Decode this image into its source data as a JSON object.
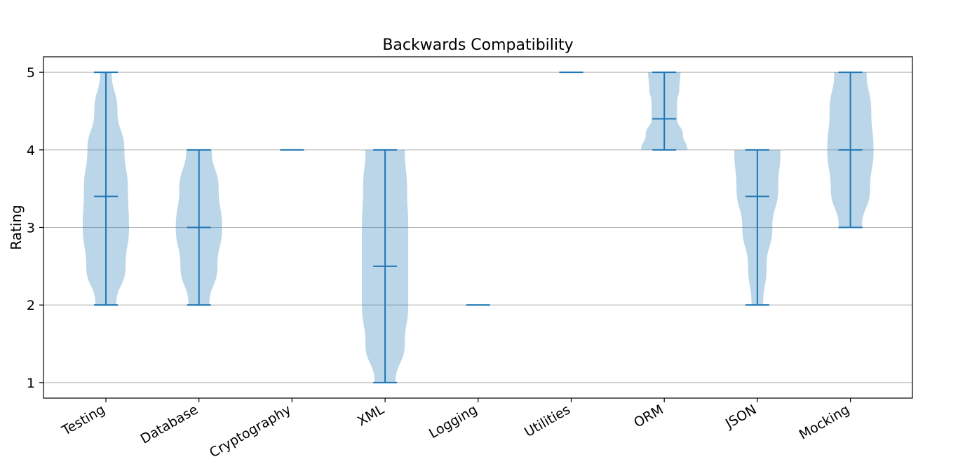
{
  "chart_data": {
    "type": "violin",
    "title": "Backwards Compatibility",
    "xlabel": "",
    "ylabel": "Rating",
    "ylim": [
      0.8,
      5.2
    ],
    "yticks": [
      1,
      2,
      3,
      4,
      5
    ],
    "grid": "horizontal",
    "categories": [
      "Testing",
      "Database",
      "Cryptography",
      "XML",
      "Logging",
      "Utilities",
      "ORM",
      "JSON",
      "Mocking"
    ],
    "stats": [
      {
        "min": 2,
        "max": 5,
        "mean": 3.4
      },
      {
        "min": 2,
        "max": 4,
        "mean": 3.0
      },
      {
        "min": 4,
        "max": 4,
        "mean": 4.0
      },
      {
        "min": 1,
        "max": 4,
        "mean": 2.5
      },
      {
        "min": 2,
        "max": 2,
        "mean": 2.0
      },
      {
        "min": 5,
        "max": 5,
        "mean": 5.0
      },
      {
        "min": 4,
        "max": 5,
        "mean": 4.4
      },
      {
        "min": 2,
        "max": 4,
        "mean": 3.4
      },
      {
        "min": 3,
        "max": 5,
        "mean": 4.0
      }
    ],
    "density_profiles": [
      {
        "y": [
          2,
          2.5,
          3,
          3.5,
          4,
          4.5,
          5
        ],
        "w": [
          0.45,
          0.85,
          1.0,
          0.95,
          0.8,
          0.5,
          0.25
        ]
      },
      {
        "y": [
          2,
          2.5,
          3,
          3.5,
          4
        ],
        "w": [
          0.45,
          0.8,
          1.0,
          0.85,
          0.55
        ]
      },
      null,
      {
        "y": [
          1,
          1.5,
          2,
          2.5,
          3,
          3.5,
          4
        ],
        "w": [
          0.45,
          0.85,
          1.0,
          1.0,
          1.0,
          0.95,
          0.85
        ]
      },
      null,
      null,
      {
        "y": [
          4,
          4.2,
          4.4,
          4.6,
          4.8,
          5
        ],
        "w": [
          1.0,
          0.8,
          0.55,
          0.55,
          0.65,
          0.7
        ]
      },
      {
        "y": [
          2,
          2.5,
          3,
          3.5,
          4
        ],
        "w": [
          0.25,
          0.4,
          0.65,
          0.9,
          1.0
        ]
      },
      {
        "y": [
          3,
          3.5,
          4,
          4.5,
          5
        ],
        "w": [
          0.5,
          0.85,
          1.0,
          0.9,
          0.7
        ]
      }
    ]
  }
}
